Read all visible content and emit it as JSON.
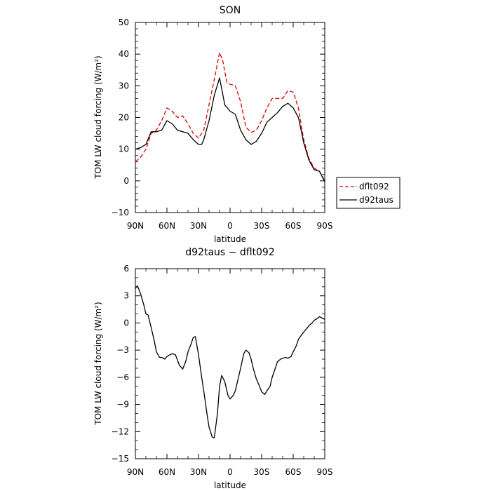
{
  "chart_data": [
    {
      "type": "line",
      "title": "SON",
      "xlabel": "latitude",
      "ylabel": "TOM LW cloud forcing (W/m²)",
      "ylim": [
        -10,
        50
      ],
      "yticks": [
        -10,
        0,
        10,
        20,
        30,
        40,
        50
      ],
      "xlim": [
        90,
        -90
      ],
      "xticks": [
        90,
        60,
        30,
        0,
        -30,
        -60,
        -90
      ],
      "xtick_labels": [
        "90N",
        "60N",
        "30N",
        "0",
        "30S",
        "60S",
        "90S"
      ],
      "legend_placement": "right",
      "series": [
        {
          "name": "dflt092",
          "color": "#e00000",
          "dash": "dashed",
          "points": [
            [
              90,
              6
            ],
            [
              85,
              7.5
            ],
            [
              80,
              10
            ],
            [
              75,
              15
            ],
            [
              70,
              16
            ],
            [
              65,
              19
            ],
            [
              60,
              23
            ],
            [
              55,
              22
            ],
            [
              50,
              20
            ],
            [
              45,
              20.5
            ],
            [
              40,
              18
            ],
            [
              35,
              15
            ],
            [
              30,
              13.5
            ],
            [
              25,
              16
            ],
            [
              20,
              24
            ],
            [
              15,
              32
            ],
            [
              10,
              40.5
            ],
            [
              7,
              38
            ],
            [
              3,
              31
            ],
            [
              0,
              30.5
            ],
            [
              -5,
              30
            ],
            [
              -10,
              25
            ],
            [
              -15,
              17
            ],
            [
              -20,
              15.3
            ],
            [
              -25,
              16
            ],
            [
              -30,
              19
            ],
            [
              -35,
              23
            ],
            [
              -40,
              26
            ],
            [
              -45,
              26
            ],
            [
              -50,
              26
            ],
            [
              -55,
              28.5
            ],
            [
              -60,
              28
            ],
            [
              -65,
              23
            ],
            [
              -70,
              13
            ],
            [
              -75,
              7
            ],
            [
              -80,
              4
            ],
            [
              -85,
              3
            ],
            [
              -90,
              0
            ]
          ]
        },
        {
          "name": "d92taus",
          "color": "#000000",
          "dash": "solid",
          "points": [
            [
              90,
              10
            ],
            [
              85,
              10.5
            ],
            [
              80,
              11.5
            ],
            [
              75,
              15.5
            ],
            [
              70,
              15.5
            ],
            [
              65,
              16
            ],
            [
              60,
              19
            ],
            [
              55,
              18
            ],
            [
              50,
              16
            ],
            [
              45,
              15.5
            ],
            [
              40,
              15
            ],
            [
              35,
              13
            ],
            [
              30,
              11.5
            ],
            [
              27,
              11.5
            ],
            [
              25,
              13
            ],
            [
              20,
              19
            ],
            [
              15,
              27
            ],
            [
              10,
              32.5
            ],
            [
              5,
              24
            ],
            [
              0,
              22
            ],
            [
              -5,
              21
            ],
            [
              -10,
              16
            ],
            [
              -15,
              13
            ],
            [
              -20,
              11.5
            ],
            [
              -25,
              12.5
            ],
            [
              -30,
              15
            ],
            [
              -35,
              18.5
            ],
            [
              -40,
              20
            ],
            [
              -45,
              21.5
            ],
            [
              -50,
              23.5
            ],
            [
              -55,
              24.5
            ],
            [
              -60,
              23
            ],
            [
              -65,
              20
            ],
            [
              -70,
              12
            ],
            [
              -75,
              6.5
            ],
            [
              -80,
              3.5
            ],
            [
              -85,
              3
            ],
            [
              -90,
              -0.3
            ]
          ]
        }
      ]
    },
    {
      "type": "line",
      "title": "d92taus − dflt092",
      "xlabel": "latitude",
      "ylabel": "TOM LW cloud forcing (W/m²)",
      "ylim": [
        -15,
        6
      ],
      "yticks": [
        -15,
        -12,
        -9,
        -6,
        -3,
        0,
        3,
        6
      ],
      "xlim": [
        90,
        -90
      ],
      "xticks": [
        90,
        60,
        30,
        0,
        -30,
        -60,
        -90
      ],
      "xtick_labels": [
        "90N",
        "60N",
        "30N",
        "0",
        "30S",
        "60S",
        "90S"
      ],
      "series": [
        {
          "color": "#000000",
          "dash": "solid",
          "points": [
            [
              90,
              3.8
            ],
            [
              88,
              4.1
            ],
            [
              85,
              3.2
            ],
            [
              82,
              2
            ],
            [
              80,
              1
            ],
            [
              78,
              0.9
            ],
            [
              75,
              -0.5
            ],
            [
              72,
              -2
            ],
            [
              70,
              -3.2
            ],
            [
              67,
              -3.8
            ],
            [
              65,
              -3.8
            ],
            [
              62,
              -4
            ],
            [
              60,
              -3.7
            ],
            [
              57,
              -3.5
            ],
            [
              55,
              -3.4
            ],
            [
              52,
              -3.5
            ],
            [
              48,
              -4.7
            ],
            [
              45,
              -5.1
            ],
            [
              42,
              -4.2
            ],
            [
              40,
              -3.2
            ],
            [
              37,
              -2.3
            ],
            [
              35,
              -1.6
            ],
            [
              33,
              -1.5
            ],
            [
              30,
              -3.5
            ],
            [
              27,
              -6
            ],
            [
              25,
              -7.5
            ],
            [
              22,
              -10
            ],
            [
              20,
              -11.5
            ],
            [
              17,
              -12.6
            ],
            [
              15,
              -12.7
            ],
            [
              12,
              -10
            ],
            [
              10,
              -7
            ],
            [
              8,
              -5.8
            ],
            [
              5,
              -6.5
            ],
            [
              2,
              -8
            ],
            [
              0,
              -8.4
            ],
            [
              -3,
              -8
            ],
            [
              -5,
              -7.5
            ],
            [
              -8,
              -6
            ],
            [
              -10,
              -5
            ],
            [
              -13,
              -3.4
            ],
            [
              -15,
              -3
            ],
            [
              -18,
              -3.3
            ],
            [
              -20,
              -4
            ],
            [
              -22,
              -5
            ],
            [
              -25,
              -6.2
            ],
            [
              -28,
              -7
            ],
            [
              -30,
              -7.6
            ],
            [
              -33,
              -7.9
            ],
            [
              -35,
              -7.5
            ],
            [
              -38,
              -7
            ],
            [
              -40,
              -6
            ],
            [
              -43,
              -5
            ],
            [
              -45,
              -4.3
            ],
            [
              -48,
              -4
            ],
            [
              -50,
              -3.9
            ],
            [
              -53,
              -3.8
            ],
            [
              -55,
              -3.9
            ],
            [
              -58,
              -3.7
            ],
            [
              -60,
              -3.2
            ],
            [
              -63,
              -2.5
            ],
            [
              -65,
              -1.8
            ],
            [
              -68,
              -1.3
            ],
            [
              -70,
              -1
            ],
            [
              -73,
              -0.6
            ],
            [
              -75,
              -0.3
            ],
            [
              -78,
              0
            ],
            [
              -80,
              0.3
            ],
            [
              -83,
              0.5
            ],
            [
              -85,
              0.7
            ],
            [
              -88,
              0.5
            ],
            [
              -90,
              0.4
            ]
          ]
        }
      ]
    }
  ]
}
